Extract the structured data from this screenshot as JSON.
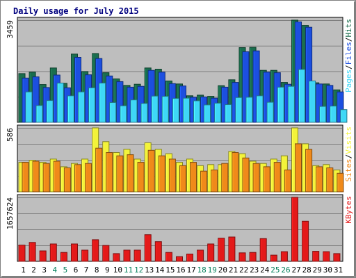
{
  "chart_data": {
    "type": "bar",
    "title": "Daily usage for July 2015",
    "categories": [
      "1",
      "2",
      "3",
      "4",
      "5",
      "6",
      "7",
      "8",
      "9",
      "10",
      "11",
      "12",
      "13",
      "14",
      "15",
      "16",
      "17",
      "18",
      "19",
      "20",
      "21",
      "22",
      "23",
      "24",
      "25",
      "26",
      "27",
      "28",
      "29",
      "30",
      "31"
    ],
    "weekend_days": [
      "4",
      "5",
      "11",
      "12",
      "18",
      "19",
      "25",
      "26"
    ],
    "panels": [
      {
        "id": "hits_files_pages",
        "ymax_label": "3459",
        "ymax": 3459,
        "legend": [
          "Pages",
          "Files",
          "Hits"
        ],
        "series": [
          {
            "name": "Hits",
            "color": "#1a6e4e",
            "values": [
              1650,
              1700,
              1280,
              1840,
              1320,
              2310,
              1720,
              2330,
              1680,
              1470,
              1250,
              1290,
              1840,
              1800,
              1400,
              1300,
              900,
              920,
              880,
              1240,
              1440,
              2530,
              2540,
              1760,
              1760,
              1350,
              3459,
              3280,
              1340,
              1300,
              1100
            ]
          },
          {
            "name": "Files",
            "color": "#1c4fe0",
            "values": [
              1500,
              1540,
              1180,
              1600,
              1170,
              2200,
              1610,
              2160,
              1570,
              1380,
              1190,
              1220,
              1760,
              1700,
              1310,
              1230,
              850,
              860,
              820,
              1190,
              1350,
              2390,
              2420,
              1700,
              1680,
              1290,
              3400,
              3220,
              1300,
              1250,
              1030
            ]
          },
          {
            "name": "Pages",
            "color": "#3fd7f7",
            "values": [
              1030,
              570,
              740,
              1330,
              900,
              1030,
              1170,
              1330,
              670,
              560,
              760,
              640,
              890,
              880,
              810,
              820,
              730,
              590,
              650,
              600,
              840,
              850,
              900,
              680,
              1190,
              1220,
              1790,
              1400,
              540,
              550,
              430
            ]
          }
        ]
      },
      {
        "id": "visits_sites",
        "ymax_label": "586",
        "ymax": 586,
        "legend": [
          "Sites",
          "Visits"
        ],
        "series": [
          {
            "name": "Visits",
            "color": "#f3f33a",
            "values": [
              270,
              290,
              270,
              300,
              230,
              260,
              300,
              586,
              460,
              360,
              390,
              300,
              450,
              390,
              350,
              270,
              300,
              240,
              250,
              250,
              370,
              350,
              280,
              260,
              300,
              330,
              586,
              440,
              240,
              250,
              200
            ]
          },
          {
            "name": "Sites",
            "color": "#f08a1a",
            "values": [
              270,
              280,
              260,
              280,
              220,
              250,
              260,
              400,
              360,
              330,
              340,
              270,
              380,
              330,
              300,
              240,
              270,
              190,
              200,
              260,
              360,
              310,
              260,
              230,
              270,
              200,
              440,
              390,
              230,
              220,
              170
            ]
          }
        ]
      },
      {
        "id": "kbytes",
        "ymax_label": "1657624",
        "ymax": 1657624,
        "legend": [
          "KBytes"
        ],
        "series": [
          {
            "name": "KBytes",
            "color": "#e41a1a",
            "values": [
              420000,
              490000,
              270000,
              450000,
              230000,
              450000,
              290000,
              560000,
              410000,
              200000,
              290000,
              290000,
              690000,
              510000,
              230000,
              120000,
              190000,
              290000,
              450000,
              600000,
              630000,
              220000,
              230000,
              590000,
              160000,
              250000,
              1657624,
              1040000,
              260000,
              250000,
              200000
            ]
          }
        ]
      }
    ],
    "colors": {
      "background": "#bebebe",
      "title": "#00007f",
      "grid": "#7f7f7f",
      "weekday_label": "#000000",
      "weekend_label": "#00805a"
    }
  }
}
